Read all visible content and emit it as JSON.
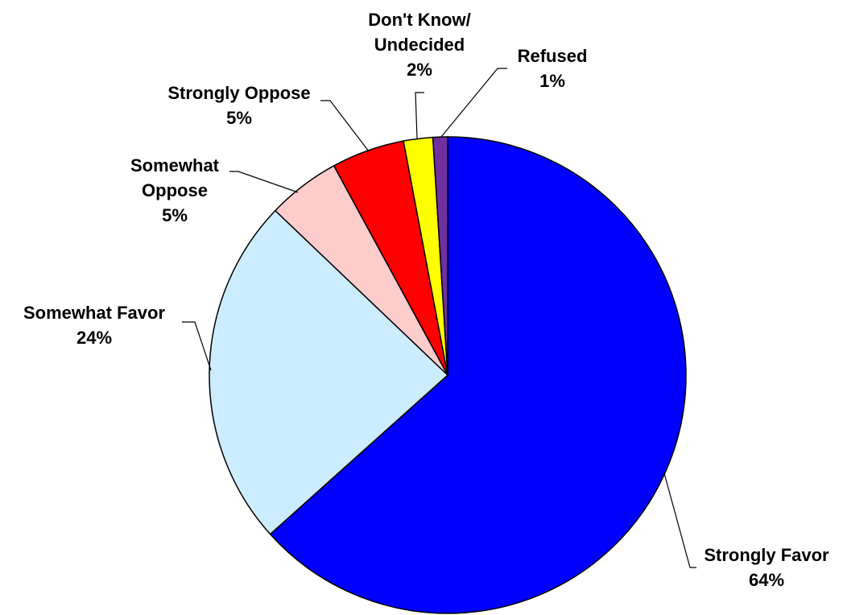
{
  "chart_data": {
    "type": "pie",
    "slices": [
      {
        "label": "Strongly Favor",
        "percent_label": "64%",
        "value": 64,
        "color": "#0000FF"
      },
      {
        "label": "Somewhat Favor",
        "percent_label": "24%",
        "value": 24,
        "color": "#CCECFF"
      },
      {
        "label": "Somewhat Oppose",
        "percent_label": "5%",
        "value": 5,
        "color": "#FFCCCC"
      },
      {
        "label": "Strongly Oppose",
        "percent_label": "5%",
        "value": 5,
        "color": "#FF0000"
      },
      {
        "label": "Don't Know/ Undecided",
        "percent_label": "2%",
        "value": 2,
        "color": "#FFFF00"
      },
      {
        "label": "Refused",
        "percent_label": "1%",
        "value": 1,
        "color": "#7030A0"
      }
    ],
    "start_angle": "12 o'clock",
    "direction": "clockwise",
    "legend": "none",
    "label_style": "outside with leader lines"
  }
}
